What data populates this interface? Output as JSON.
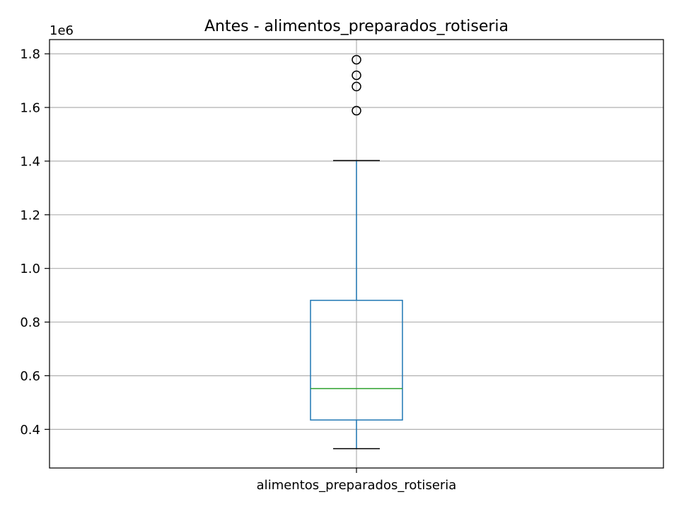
{
  "chart_data": {
    "type": "box",
    "title": "Antes - alimentos_preparados_rotiseria",
    "xlabel": "",
    "ylabel": "",
    "offset_label": "1e6",
    "categories": [
      "alimentos_preparados_rotiseria"
    ],
    "ylim": [
      0.256,
      1.853
    ],
    "yticks": [
      0.4,
      0.6,
      0.8,
      1.0,
      1.2,
      1.4,
      1.6,
      1.8
    ],
    "ytick_labels": [
      "0.4",
      "0.6",
      "0.8",
      "1.0",
      "1.2",
      "1.4",
      "1.6",
      "1.8"
    ],
    "grid": true,
    "boxes": [
      {
        "category": "alimentos_preparados_rotiseria",
        "whisker_low": 0.328,
        "q1": 0.435,
        "median": 0.552,
        "q3": 0.881,
        "whisker_high": 1.402,
        "outliers": [
          1.588,
          1.678,
          1.72,
          1.778
        ]
      }
    ],
    "colors": {
      "box": "#1f77b4",
      "median": "#2ca02c",
      "whisker_cap": "#000000",
      "grid": "#b0b0b0"
    }
  }
}
